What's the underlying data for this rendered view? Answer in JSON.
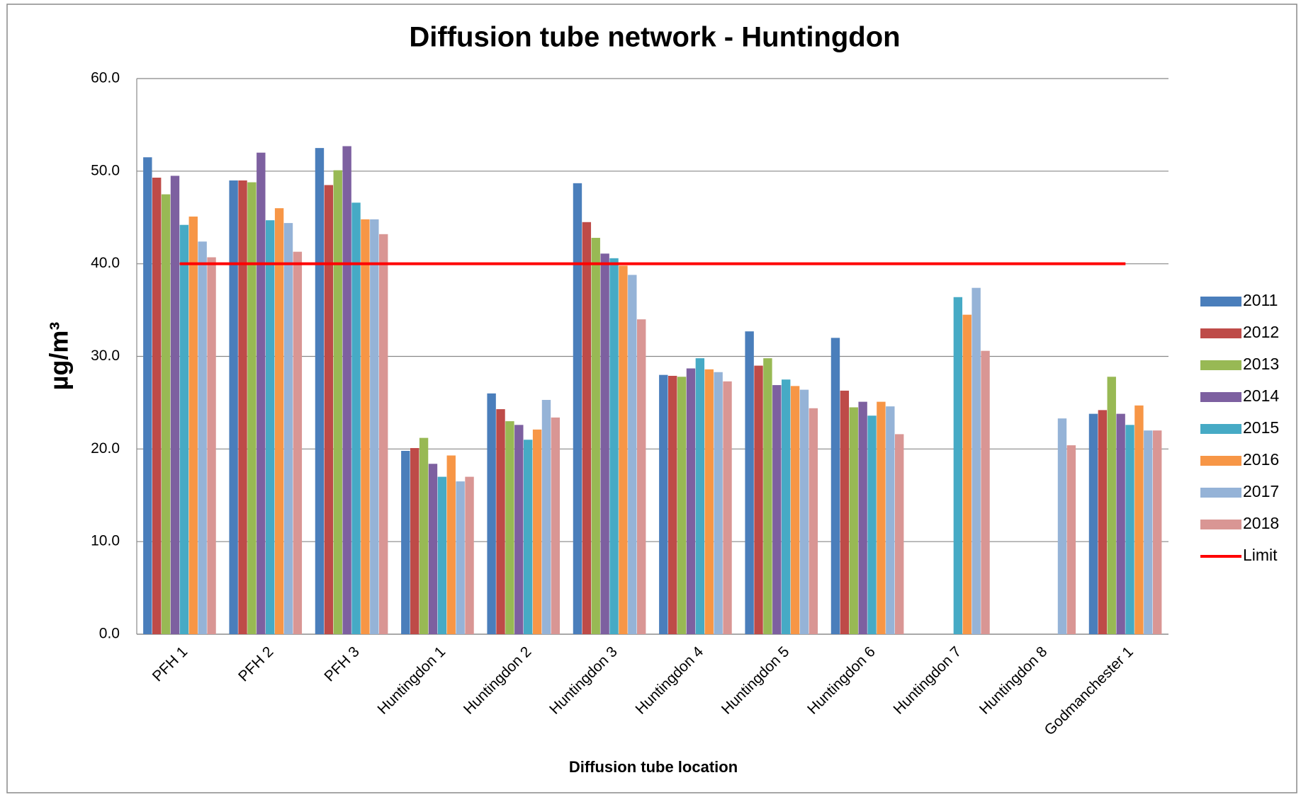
{
  "chart_data": {
    "type": "bar",
    "title": "Diffusion tube network - Huntingdon",
    "x_label": "Diffusion tube location",
    "y_label": "µg/m³",
    "categories": [
      "PFH 1",
      "PFH 2",
      "PFH 3",
      "Huntingdon 1",
      "Huntingdon 2",
      "Huntingdon 3",
      "Huntingdon 4",
      "Huntingdon 5",
      "Huntingdon 6",
      "Huntingdon 7",
      "Huntingdon 8",
      "Godmanchester 1"
    ],
    "series": [
      {
        "name": "2011",
        "color": "#4a7ebb",
        "values": [
          51.5,
          49.0,
          52.5,
          19.8,
          26.0,
          48.7,
          28.0,
          32.7,
          32.0,
          null,
          null,
          23.8
        ]
      },
      {
        "name": "2012",
        "color": "#be4b48",
        "values": [
          49.3,
          49.0,
          48.5,
          20.1,
          24.3,
          44.5,
          27.9,
          29.0,
          26.3,
          null,
          null,
          24.2
        ]
      },
      {
        "name": "2013",
        "color": "#98b954",
        "values": [
          47.5,
          48.8,
          50.1,
          21.2,
          23.0,
          42.8,
          27.8,
          29.8,
          24.5,
          null,
          null,
          27.8
        ]
      },
      {
        "name": "2014",
        "color": "#7d60a0",
        "values": [
          49.5,
          52.0,
          52.7,
          18.4,
          22.6,
          41.1,
          28.7,
          26.9,
          25.1,
          null,
          null,
          23.8
        ]
      },
      {
        "name": "2015",
        "color": "#46aac5",
        "values": [
          44.2,
          44.7,
          46.6,
          17.0,
          21.0,
          40.6,
          29.8,
          27.5,
          23.6,
          36.4,
          null,
          22.6
        ]
      },
      {
        "name": "2016",
        "color": "#f79646",
        "values": [
          45.1,
          46.0,
          44.8,
          19.3,
          22.1,
          39.8,
          28.6,
          26.8,
          25.1,
          34.5,
          null,
          24.7
        ]
      },
      {
        "name": "2017",
        "color": "#95b3d7",
        "values": [
          42.4,
          44.4,
          44.8,
          16.5,
          25.3,
          38.8,
          28.3,
          26.4,
          24.6,
          37.4,
          23.3,
          22.0
        ]
      },
      {
        "name": "2018",
        "color": "#d99694",
        "values": [
          40.7,
          41.3,
          43.2,
          17.0,
          23.4,
          34.0,
          27.3,
          24.4,
          21.6,
          30.6,
          20.4,
          22.0
        ]
      },
      {
        "name": "Limit",
        "type": "line",
        "color": "#ff0000",
        "values": [
          40,
          40,
          40,
          40,
          40,
          40,
          40,
          40,
          40,
          40,
          40,
          40
        ]
      }
    ],
    "ylim": [
      0,
      60
    ],
    "yticks": [
      {
        "value": 0,
        "label": "0.0"
      },
      {
        "value": 10,
        "label": "10.0"
      },
      {
        "value": 20,
        "label": "20.0"
      },
      {
        "value": 30,
        "label": "30.0"
      },
      {
        "value": 40,
        "label": "40.0"
      },
      {
        "value": 50,
        "label": "50.0"
      },
      {
        "value": 60,
        "label": "60.0"
      }
    ],
    "grid": true,
    "legend": "right"
  }
}
